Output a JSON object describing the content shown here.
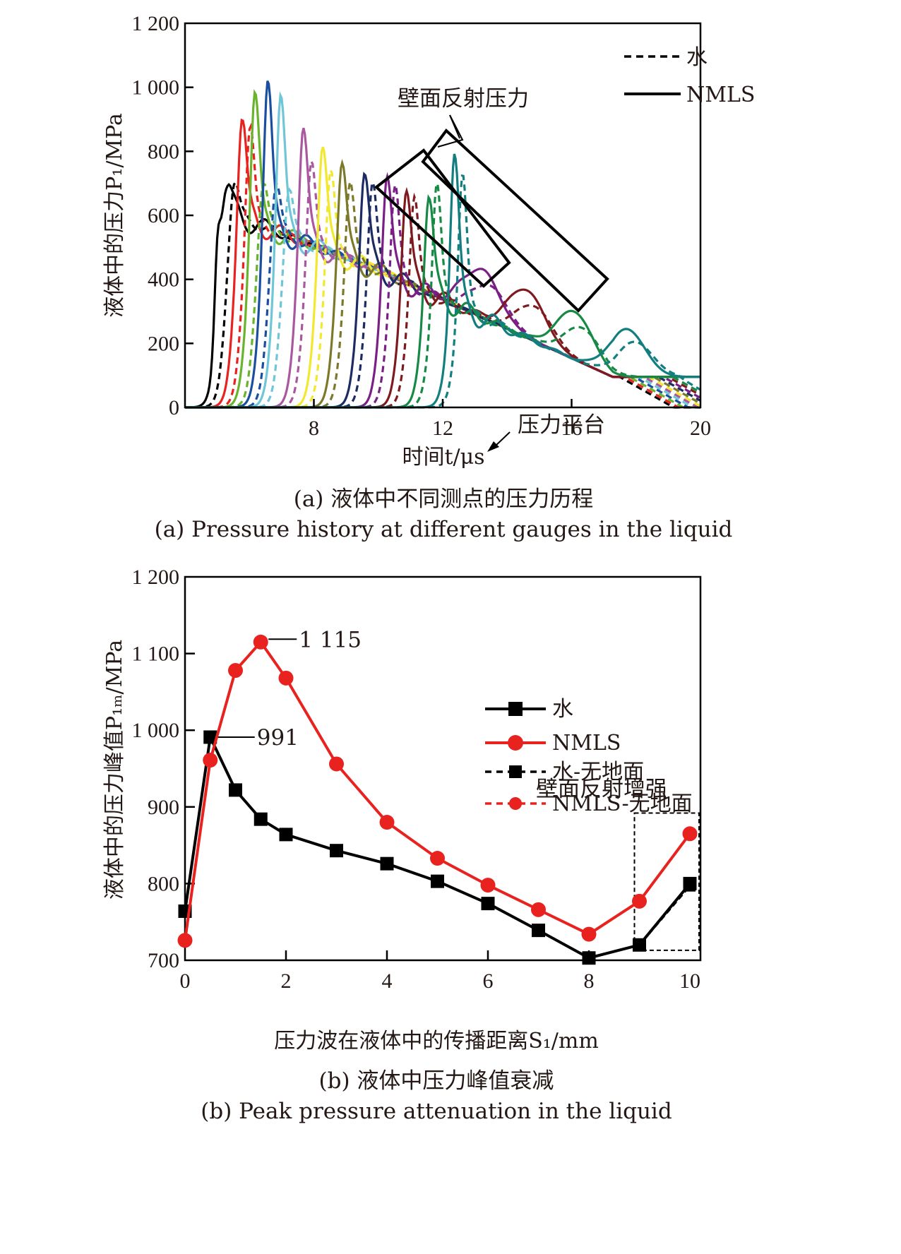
{
  "chart_data": [
    {
      "id": "a",
      "type": "line",
      "title": "",
      "xlabel": "时间t/μs",
      "ylabel": "液体中的压力P₁/MPa",
      "xlim": [
        4,
        20
      ],
      "ylim": [
        0,
        1200
      ],
      "xticks": [
        8,
        12,
        16,
        20
      ],
      "yticks": [
        0,
        200,
        400,
        600,
        800,
        1000,
        1200
      ],
      "ytick_labels": [
        "0",
        "200",
        "400",
        "600",
        "800",
        "1 000",
        "1 200"
      ],
      "xtick_labels": [
        "8",
        "12",
        "16",
        "20"
      ],
      "grid": false,
      "legend": {
        "placement": "top-right",
        "entries": [
          {
            "label": "水",
            "style": "dashed"
          },
          {
            "label": "NMLS",
            "style": "solid"
          }
        ]
      },
      "annotations": [
        {
          "text": "壁面反射压力",
          "target": "reflected-pressure-boxes"
        },
        {
          "text": "压力平台",
          "target": "pressure-plateau"
        }
      ],
      "gauges": [
        {
          "color": "#000000",
          "arrival": 5.0,
          "peak_solid": 740,
          "peak_dashed": 760,
          "pre": 250
        },
        {
          "color": "#e8231f",
          "arrival": 5.5,
          "peak_solid": 985,
          "peak_dashed": 960
        },
        {
          "color": "#6ab42d",
          "arrival": 5.9,
          "peak_solid": 1080,
          "peak_dashed": 760
        },
        {
          "color": "#1a4fa0",
          "arrival": 6.3,
          "peak_solid": 1120,
          "peak_dashed": 760
        },
        {
          "color": "#6ec6d6",
          "arrival": 6.7,
          "peak_solid": 1070,
          "peak_dashed": 740
        },
        {
          "color": "#a9579f",
          "arrival": 7.4,
          "peak_solid": 955,
          "peak_dashed": 840
        },
        {
          "color": "#f2e830",
          "arrival": 8.0,
          "peak_solid": 890,
          "peak_dashed": 810
        },
        {
          "color": "#7c7a2a",
          "arrival": 8.6,
          "peak_solid": 835,
          "peak_dashed": 770
        },
        {
          "color": "#1d2b63",
          "arrival": 9.3,
          "peak_solid": 800,
          "peak_dashed": 770
        },
        {
          "color": "#7a1f86",
          "arrival": 10.0,
          "peak_solid": 790,
          "peak_dashed": 760
        },
        {
          "color": "#7e1a1e",
          "arrival": 10.6,
          "peak_solid": 740,
          "peak_dashed": 720
        },
        {
          "color": "#168a45",
          "arrival": 11.3,
          "peak_solid": 720,
          "peak_dashed": 770
        },
        {
          "color": "#137e80",
          "arrival": 12.1,
          "peak_solid": 870,
          "peak_dashed": 800
        }
      ],
      "caption_cn": "(a) 液体中不同测点的压力历程",
      "caption_en": "(a) Pressure history at different gauges in the liquid"
    },
    {
      "id": "b",
      "type": "line",
      "title": "",
      "xlabel": "压力波在液体中的传播距离S₁/mm",
      "ylabel": "液体中的压力峰值P₁ₘ/MPa",
      "xlim": [
        0,
        10
      ],
      "ylim": [
        700,
        1200
      ],
      "xticks": [
        0,
        2,
        4,
        6,
        8,
        10
      ],
      "xtick_labels": [
        "0",
        "2",
        "4",
        "6",
        "8",
        "10"
      ],
      "yticks": [
        700,
        800,
        900,
        1000,
        1100,
        1200
      ],
      "ytick_labels": [
        "700",
        "800",
        "900",
        "1 000",
        "1 100",
        "1 200"
      ],
      "grid": false,
      "x": [
        0,
        0.5,
        1,
        1.5,
        2,
        3,
        4,
        5,
        6,
        7,
        8,
        9,
        10
      ],
      "series": [
        {
          "name": "水",
          "color": "#000000",
          "style": "solid",
          "marker": "square",
          "values": [
            764,
            991,
            922,
            884,
            864,
            843,
            826,
            803,
            774,
            739,
            703,
            720,
            800
          ]
        },
        {
          "name": "NMLS",
          "color": "#e8231f",
          "style": "solid",
          "marker": "circle",
          "values": [
            726,
            961,
            1078,
            1115,
            1068,
            956,
            880,
            833,
            798,
            766,
            734,
            777,
            865
          ]
        },
        {
          "name": "水-无地面",
          "color": "#000000",
          "style": "dashed",
          "marker": "square",
          "values": [
            764,
            991,
            922,
            884,
            864,
            843,
            826,
            803,
            774,
            739,
            703,
            720,
            797
          ]
        },
        {
          "name": "NMLS-无地面",
          "color": "#e8231f",
          "style": "dashed",
          "marker": "circle",
          "values": [
            726,
            961,
            1078,
            1115,
            1068,
            956,
            880,
            833,
            798,
            766,
            734,
            777,
            865
          ]
        }
      ],
      "legend": {
        "placement": "top-right"
      },
      "annotations": [
        {
          "text": "1 115",
          "x": 1.5,
          "y": 1115
        },
        {
          "text": "991",
          "x": 0.5,
          "y": 991
        },
        {
          "text": "壁面反射增强",
          "x_range": [
            9,
            10
          ],
          "y_range": [
            713,
            892
          ]
        }
      ],
      "caption_cn": "(b) 液体中压力峰值衰减",
      "caption_en": "(b) Peak pressure attenuation in the liquid"
    }
  ]
}
